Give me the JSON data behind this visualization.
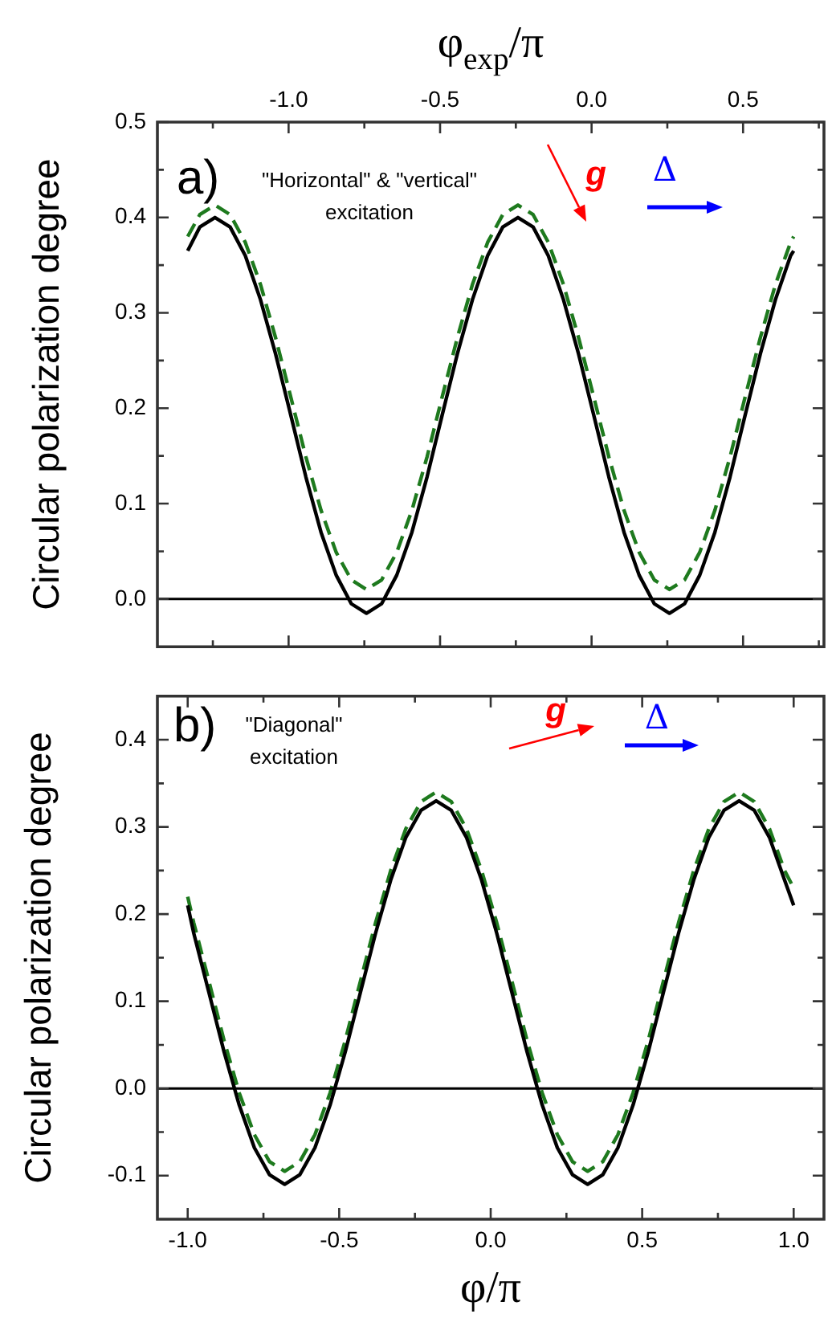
{
  "chart_data": [
    {
      "type": "line",
      "xlabel": "φ$_{exp}$/π",
      "ylabel": "Circular polarization degree",
      "annotations": [
        "a)",
        "\"Horizontal\" & \"vertical\"\nexcitation",
        "g",
        "Δ"
      ],
      "x": [
        -1.333,
        -1.293,
        -1.243,
        -1.193,
        -1.143,
        -1.093,
        -1.043,
        -0.993,
        -0.943,
        -0.893,
        -0.843,
        -0.793,
        -0.743,
        -0.693,
        -0.643,
        -0.593,
        -0.543,
        -0.493,
        -0.443,
        -0.393,
        -0.343,
        -0.293,
        -0.243,
        -0.193,
        -0.143,
        -0.093,
        -0.043,
        0.007,
        0.057,
        0.107,
        0.157,
        0.207,
        0.257,
        0.307,
        0.357,
        0.407,
        0.457,
        0.507,
        0.557,
        0.607,
        0.657,
        0.667
      ],
      "series": [
        {
          "color": "#000000",
          "line_style": "solid",
          "values": [
            0.365,
            0.39,
            0.4,
            0.39,
            0.36,
            0.314,
            0.257,
            0.193,
            0.128,
            0.07,
            0.025,
            -0.005,
            -0.015,
            -0.005,
            0.025,
            0.07,
            0.128,
            0.193,
            0.257,
            0.314,
            0.36,
            0.39,
            0.4,
            0.39,
            0.36,
            0.314,
            0.257,
            0.193,
            0.128,
            0.07,
            0.025,
            -0.005,
            -0.015,
            -0.005,
            0.025,
            0.07,
            0.128,
            0.193,
            0.257,
            0.314,
            0.36,
            0.365
          ]
        },
        {
          "color": "#1e7a1e",
          "line_style": "dashed",
          "values": [
            0.38,
            0.403,
            0.413,
            0.403,
            0.374,
            0.33,
            0.274,
            0.212,
            0.149,
            0.093,
            0.049,
            0.02,
            0.01,
            0.02,
            0.049,
            0.093,
            0.149,
            0.212,
            0.274,
            0.33,
            0.374,
            0.403,
            0.413,
            0.403,
            0.374,
            0.33,
            0.274,
            0.212,
            0.149,
            0.093,
            0.049,
            0.02,
            0.01,
            0.02,
            0.049,
            0.093,
            0.149,
            0.212,
            0.274,
            0.33,
            0.374,
            0.38
          ]
        }
      ],
      "xlim": [
        -1.433,
        0.767
      ],
      "xticks": [
        {
          "value": -1.25,
          "label": null
        },
        {
          "value": -1,
          "label": "-1.0"
        },
        {
          "value": -0.75,
          "label": null
        },
        {
          "value": -0.5,
          "label": "-0.5"
        },
        {
          "value": -0.25,
          "label": null
        },
        {
          "value": 0,
          "label": "0.0"
        },
        {
          "value": 0.25,
          "label": null
        },
        {
          "value": 0.5,
          "label": "0.5"
        },
        {
          "value": 0.75,
          "label": null
        }
      ],
      "ylim": [
        -0.05,
        0.5
      ],
      "yticks": [
        {
          "value": 0,
          "label": "0.0"
        },
        {
          "value": 0.05,
          "label": null
        },
        {
          "value": 0.1,
          "label": "0.1"
        },
        {
          "value": 0.15,
          "label": null
        },
        {
          "value": 0.2,
          "label": "0.2"
        },
        {
          "value": 0.25,
          "label": null
        },
        {
          "value": 0.3,
          "label": "0.3"
        },
        {
          "value": 0.35,
          "label": null
        },
        {
          "value": 0.4,
          "label": "0.4"
        },
        {
          "value": 0.45,
          "label": null
        },
        {
          "value": 0.5,
          "label": "0.5"
        }
      ],
      "ref_lines": [
        {
          "axis": "y",
          "value": 0,
          "color": "#000000"
        }
      ]
    },
    {
      "type": "line",
      "xlabel": "φ/π",
      "ylabel": "Circular polarization degree",
      "annotations": [
        "b)",
        "\"Diagonal\"\nexcitation",
        "g",
        "Δ"
      ],
      "x": [
        -1.0,
        -0.98,
        -0.93,
        -0.88,
        -0.83,
        -0.78,
        -0.73,
        -0.68,
        -0.63,
        -0.58,
        -0.53,
        -0.48,
        -0.43,
        -0.38,
        -0.33,
        -0.28,
        -0.23,
        -0.18,
        -0.13,
        -0.08,
        -0.03,
        0.02,
        0.07,
        0.12,
        0.17,
        0.22,
        0.27,
        0.32,
        0.37,
        0.42,
        0.47,
        0.52,
        0.57,
        0.62,
        0.67,
        0.72,
        0.77,
        0.82,
        0.87,
        0.92,
        0.97,
        1.0
      ],
      "series": [
        {
          "color": "#000000",
          "line_style": "solid",
          "values": [
            0.21,
            0.178,
            0.11,
            0.042,
            -0.019,
            -0.068,
            -0.099,
            -0.11,
            -0.099,
            -0.068,
            -0.019,
            0.042,
            0.11,
            0.178,
            0.239,
            0.288,
            0.319,
            0.33,
            0.319,
            0.288,
            0.239,
            0.178,
            0.11,
            0.042,
            -0.019,
            -0.068,
            -0.099,
            -0.11,
            -0.099,
            -0.068,
            -0.019,
            0.042,
            0.11,
            0.178,
            0.239,
            0.288,
            0.319,
            0.33,
            0.319,
            0.288,
            0.239,
            0.21
          ]
        },
        {
          "color": "#1e7a1e",
          "line_style": "dashed",
          "values": [
            0.22,
            0.19,
            0.123,
            0.055,
            -0.005,
            -0.053,
            -0.084,
            -0.095,
            -0.084,
            -0.053,
            -0.005,
            0.055,
            0.123,
            0.19,
            0.25,
            0.298,
            0.329,
            0.34,
            0.329,
            0.298,
            0.25,
            0.19,
            0.123,
            0.055,
            -0.005,
            -0.053,
            -0.084,
            -0.095,
            -0.084,
            -0.053,
            -0.005,
            0.055,
            0.123,
            0.19,
            0.25,
            0.298,
            0.329,
            0.34,
            0.329,
            0.298,
            0.25,
            0.23
          ]
        }
      ],
      "xlim": [
        -1.1,
        1.1
      ],
      "xticks": [
        {
          "value": -1,
          "label": "-1.0"
        },
        {
          "value": -0.75,
          "label": null
        },
        {
          "value": -0.5,
          "label": "-0.5"
        },
        {
          "value": -0.25,
          "label": null
        },
        {
          "value": 0,
          "label": "0.0"
        },
        {
          "value": 0.25,
          "label": null
        },
        {
          "value": 0.5,
          "label": "0.5"
        },
        {
          "value": 0.75,
          "label": null
        },
        {
          "value": 1,
          "label": "1.0"
        }
      ],
      "ylim": [
        -0.15,
        0.45
      ],
      "yticks": [
        {
          "value": -0.1,
          "label": "-0.1"
        },
        {
          "value": -0.05,
          "label": null
        },
        {
          "value": 0,
          "label": "0.0"
        },
        {
          "value": 0.05,
          "label": null
        },
        {
          "value": 0.1,
          "label": "0.1"
        },
        {
          "value": 0.15,
          "label": null
        },
        {
          "value": 0.2,
          "label": "0.2"
        },
        {
          "value": 0.25,
          "label": null
        },
        {
          "value": 0.3,
          "label": "0.3"
        },
        {
          "value": 0.35,
          "label": null
        },
        {
          "value": 0.4,
          "label": "0.4"
        }
      ],
      "ref_lines": [
        {
          "axis": "y",
          "value": 0,
          "color": "#000000"
        }
      ]
    }
  ]
}
